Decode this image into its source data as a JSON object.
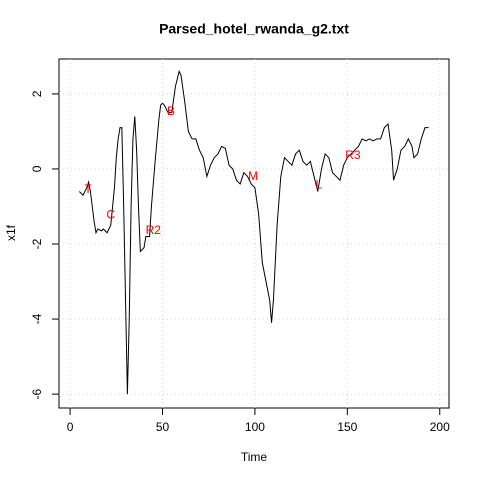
{
  "chart_data": {
    "type": "line",
    "title": "Parsed_hotel_rwanda_g2.txt",
    "xlabel": "Time",
    "ylabel": "x1f",
    "x": [
      5,
      7,
      9,
      10,
      11,
      12,
      13,
      14,
      15,
      17,
      18,
      20,
      22,
      24,
      25,
      26,
      27,
      28,
      29,
      30,
      31,
      32,
      33,
      34,
      35,
      36,
      37,
      38,
      40,
      41,
      43,
      44,
      46,
      48,
      49,
      50,
      51,
      53,
      55,
      57,
      59,
      60,
      62,
      64,
      66,
      68,
      70,
      72,
      74,
      76,
      78,
      80,
      82,
      84,
      86,
      88,
      90,
      92,
      94,
      96,
      98,
      100,
      102,
      104,
      106,
      108,
      109,
      110,
      112,
      114,
      116,
      118,
      120,
      122,
      124,
      126,
      128,
      130,
      132,
      134,
      136,
      138,
      140,
      142,
      144,
      146,
      148,
      150,
      152,
      154,
      156,
      158,
      160,
      162,
      164,
      166,
      168,
      170,
      172,
      174,
      175,
      177,
      179,
      181,
      183,
      185,
      186,
      188,
      190,
      192,
      194
    ],
    "series": [
      {
        "name": "x1f",
        "color": "#000000",
        "values": [
          -0.6,
          -0.7,
          -0.5,
          -0.35,
          -0.6,
          -1.0,
          -1.4,
          -1.7,
          -1.6,
          -1.65,
          -1.6,
          -1.7,
          -1.5,
          -0.5,
          0.3,
          0.8,
          1.1,
          1.1,
          -1.0,
          -3.5,
          -6.0,
          -4.0,
          -1.0,
          0.8,
          1.4,
          0.5,
          -1.0,
          -2.2,
          -2.1,
          -1.8,
          -1.8,
          -1.0,
          0.2,
          1.3,
          1.7,
          1.75,
          1.7,
          1.5,
          1.5,
          2.2,
          2.6,
          2.5,
          1.8,
          1.0,
          0.8,
          0.8,
          0.5,
          0.3,
          -0.2,
          0.1,
          0.3,
          0.4,
          0.6,
          0.55,
          0.1,
          0.0,
          -0.3,
          -0.4,
          -0.1,
          -0.2,
          -0.4,
          -0.5,
          -1.2,
          -2.5,
          -3.0,
          -3.5,
          -4.1,
          -3.5,
          -1.5,
          -0.2,
          0.3,
          0.2,
          0.1,
          0.4,
          0.5,
          0.2,
          0.1,
          0.2,
          -0.2,
          -0.6,
          0.0,
          0.4,
          0.3,
          -0.1,
          -0.2,
          -0.3,
          0.1,
          0.3,
          0.4,
          0.5,
          0.6,
          0.8,
          0.75,
          0.8,
          0.75,
          0.8,
          0.8,
          1.1,
          1.2,
          0.5,
          -0.3,
          0.0,
          0.5,
          0.6,
          0.8,
          0.6,
          0.3,
          0.4,
          0.8,
          1.1,
          1.1
        ]
      }
    ],
    "annotations": [
      {
        "label": "T",
        "x": 9.7,
        "y": -0.56
      },
      {
        "label": "C",
        "x": 22,
        "y": -1.23
      },
      {
        "label": "R2",
        "x": 45,
        "y": -1.65
      },
      {
        "label": "B",
        "x": 54.6,
        "y": 1.52
      },
      {
        "label": "M",
        "x": 99,
        "y": -0.21
      },
      {
        "label": "L",
        "x": 134.6,
        "y": -0.43
      },
      {
        "label": "R3",
        "x": 153,
        "y": 0.35
      }
    ],
    "annotation_color": "#ff0000",
    "xlim": [
      -6,
      205
    ],
    "ylim": [
      -6.37,
      2.93
    ],
    "xticks": [
      0,
      50,
      100,
      150,
      200
    ],
    "yticks": [
      -6,
      -4,
      -2,
      0,
      2
    ],
    "grid": true
  }
}
